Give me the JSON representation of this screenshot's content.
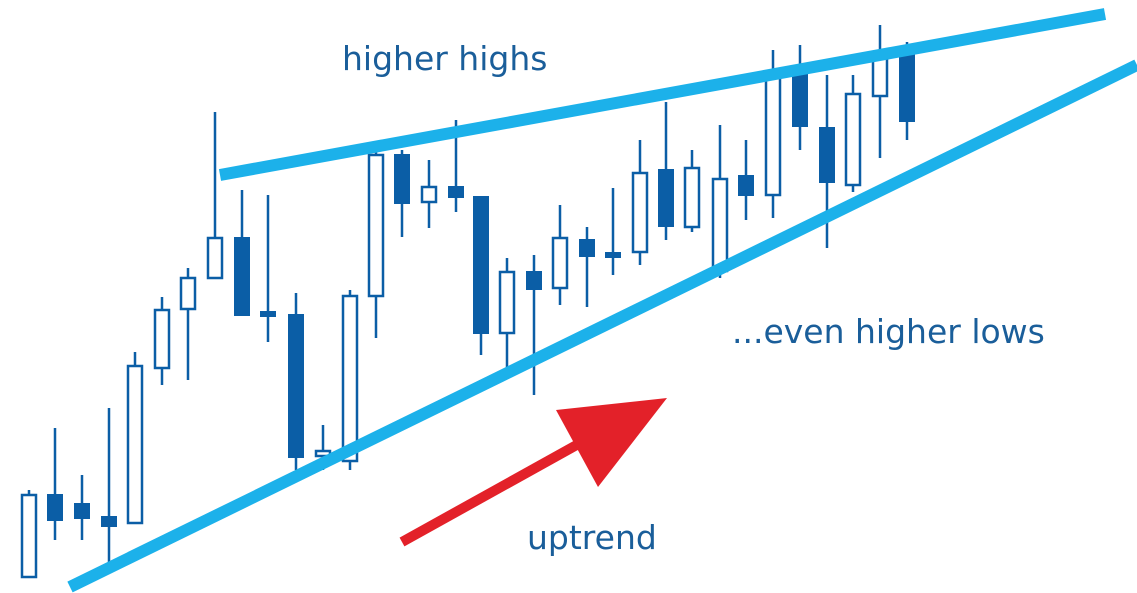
{
  "labels": {
    "highs": "higher highs",
    "lows": "...even higher lows",
    "trend": "uptrend"
  }
}
